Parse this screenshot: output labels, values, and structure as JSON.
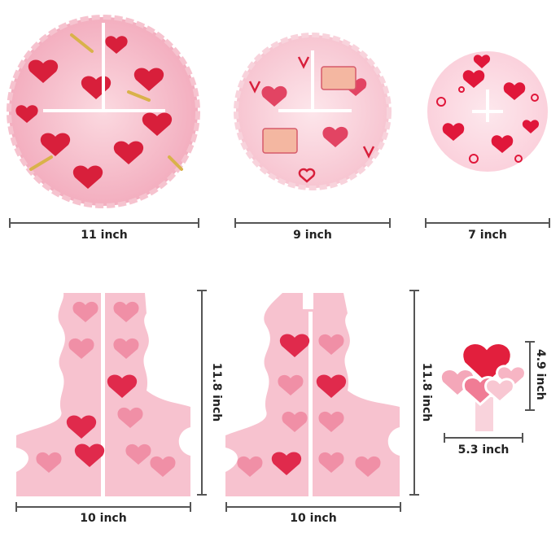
{
  "colors": {
    "pink_light": "#f8cdd6",
    "pink_mid": "#f3aebf",
    "heart_red": "#d81f3b",
    "heart_pink": "#f07a93",
    "dimension_line": "#555555",
    "text": "#222222"
  },
  "pieces": {
    "round_large": {
      "label": "11 inch"
    },
    "round_medium": {
      "label": "9 inch"
    },
    "round_small": {
      "label": "7 inch"
    },
    "stand_left": {
      "width_label": "10 inch",
      "height_label": "11.8 inch"
    },
    "stand_right": {
      "width_label": "10 inch",
      "height_label": "11.8 inch"
    },
    "topper": {
      "width_label": "5.3 inch",
      "height_label": "4.9 inch"
    }
  }
}
